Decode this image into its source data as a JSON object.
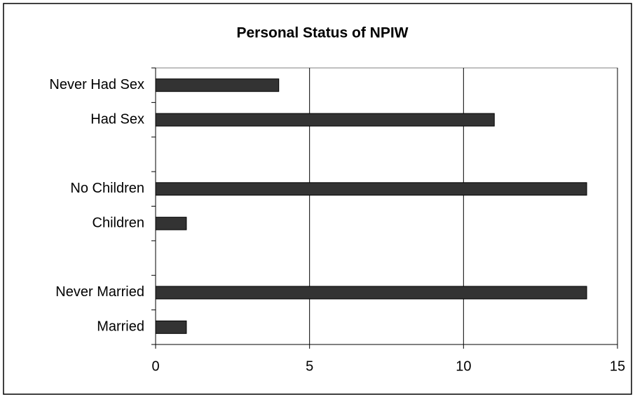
{
  "chart_data": {
    "type": "bar",
    "orientation": "horizontal",
    "title": "Personal Status of NPIW",
    "categories": [
      "Never Had Sex",
      "Had Sex",
      null,
      "No Children",
      "Children",
      null,
      "Never Married",
      "Married"
    ],
    "values": [
      4,
      11,
      null,
      14,
      1,
      null,
      14,
      1
    ],
    "color": "#333333",
    "xlim": [
      0,
      15
    ],
    "xticks": [
      0,
      5,
      10,
      15
    ],
    "grid": true
  }
}
